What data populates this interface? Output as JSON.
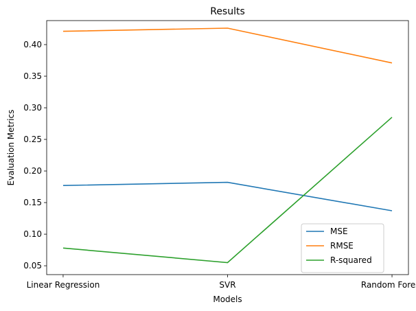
{
  "chart_data": {
    "type": "line",
    "title": "Results",
    "xlabel": "Models",
    "ylabel": "Evaluation Metrics",
    "categories": [
      "Linear Regression",
      "SVR",
      "Random Forest"
    ],
    "ylim": [
      0.036,
      0.438
    ],
    "yticks": [
      0.05,
      0.1,
      0.15,
      0.2,
      0.25,
      0.3,
      0.35,
      0.4
    ],
    "ytick_labels": [
      "0.05",
      "0.10",
      "0.15",
      "0.20",
      "0.25",
      "0.30",
      "0.35",
      "0.40"
    ],
    "grid": false,
    "legend_position": "lower right",
    "series": [
      {
        "name": "MSE",
        "color": "#1f77b4",
        "values": [
          0.177,
          0.182,
          0.137
        ]
      },
      {
        "name": "RMSE",
        "color": "#ff7f0e",
        "values": [
          0.421,
          0.426,
          0.371
        ]
      },
      {
        "name": "R-squared",
        "color": "#2ca02c",
        "values": [
          0.078,
          0.055,
          0.285
        ]
      }
    ]
  }
}
